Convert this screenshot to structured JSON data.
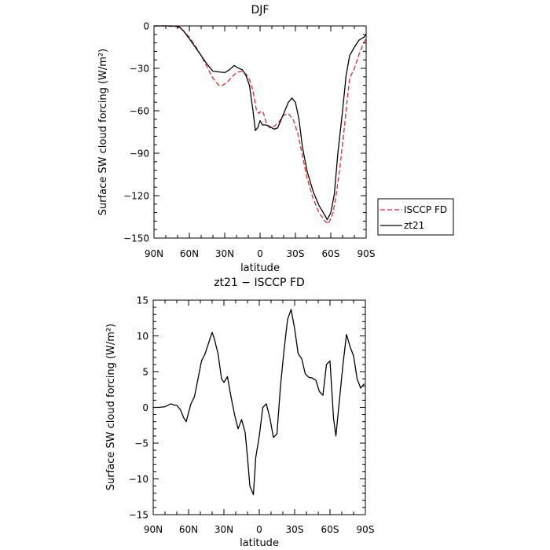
{
  "chart_data": [
    {
      "type": "line",
      "title": "DJF",
      "xlabel": "latitude",
      "ylabel": "Surface SW cloud forcing (W/m²)",
      "xlim": [
        90,
        -90
      ],
      "ylim": [
        -150,
        0
      ],
      "x_ticks": [
        {
          "value": 90,
          "label": "90N"
        },
        {
          "value": 60,
          "label": "60N"
        },
        {
          "value": 30,
          "label": "30N"
        },
        {
          "value": 0,
          "label": "0"
        },
        {
          "value": -30,
          "label": "30S"
        },
        {
          "value": -60,
          "label": "60S"
        },
        {
          "value": -90,
          "label": "90S"
        }
      ],
      "y_ticks": [
        0,
        -30,
        -60,
        -90,
        -120,
        -150
      ],
      "legend": {
        "placement": "outside-right"
      },
      "series": [
        {
          "name": "ISCCP FD",
          "color": "#e8262a",
          "dash": "dashed",
          "points": [
            [
              90,
              0
            ],
            [
              85,
              0
            ],
            [
              80,
              0
            ],
            [
              75,
              -0.3
            ],
            [
              70,
              -0.6
            ],
            [
              68,
              -1.5
            ],
            [
              65,
              -3.5
            ],
            [
              60,
              -8
            ],
            [
              55,
              -14
            ],
            [
              50,
              -21
            ],
            [
              45,
              -29
            ],
            [
              40,
              -37
            ],
            [
              35,
              -42
            ],
            [
              32,
              -42
            ],
            [
              28,
              -40
            ],
            [
              24,
              -36
            ],
            [
              20,
              -33
            ],
            [
              16,
              -32
            ],
            [
              12,
              -34
            ],
            [
              9,
              -38
            ],
            [
              6,
              -46
            ],
            [
              3,
              -60
            ],
            [
              1,
              -62
            ],
            [
              -1,
              -60
            ],
            [
              -3,
              -62
            ],
            [
              -5,
              -68
            ],
            [
              -8,
              -72
            ],
            [
              -12,
              -71
            ],
            [
              -16,
              -68
            ],
            [
              -20,
              -63
            ],
            [
              -24,
              -62
            ],
            [
              -28,
              -66
            ],
            [
              -32,
              -76
            ],
            [
              -36,
              -92
            ],
            [
              -40,
              -108
            ],
            [
              -45,
              -122
            ],
            [
              -50,
              -132
            ],
            [
              -55,
              -138
            ],
            [
              -58,
              -140
            ],
            [
              -62,
              -132
            ],
            [
              -65,
              -117
            ],
            [
              -68,
              -98
            ],
            [
              -71,
              -76
            ],
            [
              -74,
              -52
            ],
            [
              -76,
              -37
            ],
            [
              -80,
              -30
            ],
            [
              -84,
              -20
            ],
            [
              -88,
              -12
            ],
            [
              -90,
              -9
            ]
          ]
        },
        {
          "name": "zt21",
          "color": "#000000",
          "dash": "solid",
          "points": [
            [
              90,
              0
            ],
            [
              85,
              0
            ],
            [
              80,
              0
            ],
            [
              75,
              0
            ],
            [
              70,
              -0.2
            ],
            [
              68,
              -1
            ],
            [
              65,
              -3.5
            ],
            [
              60,
              -9
            ],
            [
              55,
              -15
            ],
            [
              50,
              -21
            ],
            [
              45,
              -27
            ],
            [
              40,
              -32
            ],
            [
              35,
              -32.5
            ],
            [
              30,
              -33
            ],
            [
              26,
              -31
            ],
            [
              22,
              -28
            ],
            [
              18,
              -30
            ],
            [
              15,
              -31
            ],
            [
              12,
              -35
            ],
            [
              9,
              -42
            ],
            [
              6,
              -60
            ],
            [
              4,
              -74
            ],
            [
              2,
              -72
            ],
            [
              0,
              -67
            ],
            [
              -2,
              -70
            ],
            [
              -5,
              -70
            ],
            [
              -8,
              -71
            ],
            [
              -12,
              -73
            ],
            [
              -15,
              -72
            ],
            [
              -18,
              -66
            ],
            [
              -21,
              -60
            ],
            [
              -24,
              -54
            ],
            [
              -27,
              -51
            ],
            [
              -30,
              -54
            ],
            [
              -33,
              -66
            ],
            [
              -36,
              -86
            ],
            [
              -40,
              -103
            ],
            [
              -45,
              -117
            ],
            [
              -50,
              -127
            ],
            [
              -55,
              -134
            ],
            [
              -57,
              -137
            ],
            [
              -60,
              -132
            ],
            [
              -63,
              -119
            ],
            [
              -66,
              -90
            ],
            [
              -70,
              -60
            ],
            [
              -73,
              -35
            ],
            [
              -76,
              -21
            ],
            [
              -80,
              -15
            ],
            [
              -84,
              -10
            ],
            [
              -88,
              -8
            ],
            [
              -90,
              -6
            ]
          ]
        }
      ]
    },
    {
      "type": "line",
      "title": "zt21 − ISCCP FD",
      "xlabel": "latitude",
      "ylabel": "Surface SW cloud forcing (W/m²)",
      "xlim": [
        90,
        -90
      ],
      "ylim": [
        -15,
        15
      ],
      "x_ticks": [
        {
          "value": 90,
          "label": "90N"
        },
        {
          "value": 60,
          "label": "60N"
        },
        {
          "value": 30,
          "label": "30N"
        },
        {
          "value": 0,
          "label": "0"
        },
        {
          "value": -30,
          "label": "30S"
        },
        {
          "value": -60,
          "label": "60S"
        },
        {
          "value": -90,
          "label": "90S"
        }
      ],
      "y_ticks": [
        15,
        10,
        5,
        0,
        -5,
        -10,
        -15
      ],
      "series": [
        {
          "color": "#000000",
          "dash": "solid",
          "points": [
            [
              90,
              0
            ],
            [
              85,
              0
            ],
            [
              80,
              0.1
            ],
            [
              75,
              0.5
            ],
            [
              72,
              0.3
            ],
            [
              70,
              0.3
            ],
            [
              67,
              -0.3
            ],
            [
              64,
              -1.5
            ],
            [
              62,
              -2
            ],
            [
              58,
              0.5
            ],
            [
              55,
              1.5
            ],
            [
              52,
              4
            ],
            [
              49,
              6.5
            ],
            [
              46,
              7.5
            ],
            [
              43,
              9
            ],
            [
              40,
              10.5
            ],
            [
              38,
              9.5
            ],
            [
              35,
              7.5
            ],
            [
              32,
              4
            ],
            [
              30,
              3.5
            ],
            [
              27,
              4.3
            ],
            [
              24,
              1.5
            ],
            [
              21,
              -1
            ],
            [
              18,
              -3
            ],
            [
              15,
              -1.7
            ],
            [
              12,
              -3.5
            ],
            [
              10,
              -7
            ],
            [
              8,
              -11
            ],
            [
              5,
              -12.2
            ],
            [
              3,
              -7
            ],
            [
              0,
              -4
            ],
            [
              -3,
              0
            ],
            [
              -6,
              0.5
            ],
            [
              -9,
              -1.5
            ],
            [
              -12,
              -4.2
            ],
            [
              -15,
              -3.7
            ],
            [
              -18,
              3
            ],
            [
              -21,
              8
            ],
            [
              -24,
              12.3
            ],
            [
              -27,
              13.7
            ],
            [
              -30,
              11
            ],
            [
              -33,
              7.5
            ],
            [
              -36,
              6.8
            ],
            [
              -39,
              4.7
            ],
            [
              -42,
              4.2
            ],
            [
              -45,
              4.1
            ],
            [
              -48,
              3.8
            ],
            [
              -51,
              2.2
            ],
            [
              -54,
              1.7
            ],
            [
              -57,
              6
            ],
            [
              -60,
              6.5
            ],
            [
              -63,
              -1.5
            ],
            [
              -65,
              -4
            ],
            [
              -68,
              1
            ],
            [
              -71,
              6
            ],
            [
              -74,
              10.2
            ],
            [
              -77,
              8.5
            ],
            [
              -80,
              7.2
            ],
            [
              -83,
              4
            ],
            [
              -86,
              2.7
            ],
            [
              -89,
              3.3
            ]
          ]
        }
      ]
    }
  ]
}
